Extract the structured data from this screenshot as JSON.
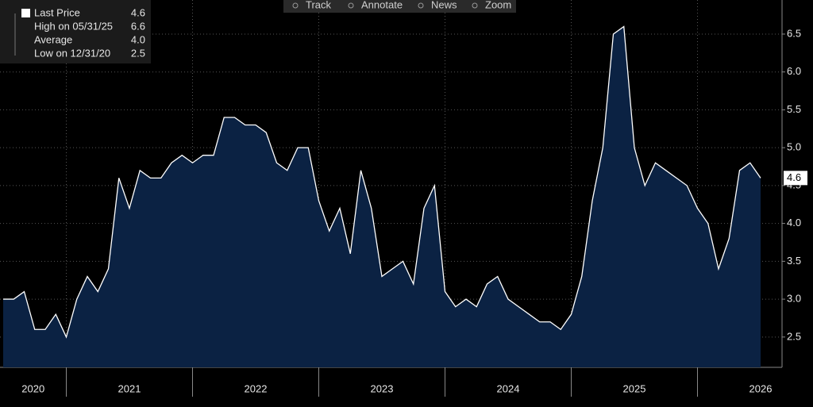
{
  "chart_data": {
    "type": "area",
    "period_labels": [
      "2020",
      "2021",
      "2022",
      "2023",
      "2024",
      "2025",
      "2026"
    ],
    "series": [
      {
        "name": "Last Price",
        "color": "#ffffff",
        "fill": "#0b2243",
        "values": [
          3.0,
          3.0,
          3.1,
          2.6,
          2.6,
          2.8,
          2.5,
          3.0,
          3.3,
          3.1,
          3.4,
          4.6,
          4.2,
          4.7,
          4.6,
          4.6,
          4.8,
          4.9,
          4.8,
          4.9,
          4.9,
          5.4,
          5.4,
          5.3,
          5.3,
          5.2,
          4.8,
          4.7,
          5.0,
          5.0,
          4.3,
          3.9,
          4.2,
          3.6,
          4.7,
          4.2,
          3.3,
          3.4,
          3.5,
          3.2,
          4.2,
          4.5,
          3.1,
          2.9,
          3.0,
          2.9,
          3.2,
          3.3,
          3.0,
          2.9,
          2.8,
          2.7,
          2.7,
          2.6,
          2.8,
          3.3,
          4.3,
          5.0,
          6.5,
          6.6,
          5.0,
          4.5,
          4.8,
          4.7,
          4.6,
          4.5,
          4.2,
          4.0,
          3.4,
          3.8,
          4.7,
          4.8,
          4.6
        ]
      }
    ],
    "stats": [
      {
        "name": "Last Price",
        "value": 4.6
      },
      {
        "name": "High on 05/31/25",
        "value": 6.6
      },
      {
        "name": "Average",
        "value": 4,
        "value_label": "4.0"
      },
      {
        "name": "Low on 12/31/20",
        "value": 2.5
      }
    ],
    "ylim": [
      2.1,
      6.95
    ],
    "yticks": [
      {
        "value": 2.5,
        "label": "2.5"
      },
      {
        "value": 3,
        "label": "3.0"
      },
      {
        "value": 3.5,
        "label": "3.5"
      },
      {
        "value": 4,
        "label": "4.0"
      },
      {
        "value": 4.5,
        "label": "4.5"
      },
      {
        "value": 5,
        "label": "5.0"
      },
      {
        "value": 5.5,
        "label": "5.5"
      },
      {
        "value": 6,
        "label": "6.0"
      },
      {
        "value": 6.5,
        "label": "6.5"
      }
    ],
    "grid": true
  },
  "toolbar": [
    "Track",
    "Annotate",
    "News",
    "Zoom"
  ]
}
